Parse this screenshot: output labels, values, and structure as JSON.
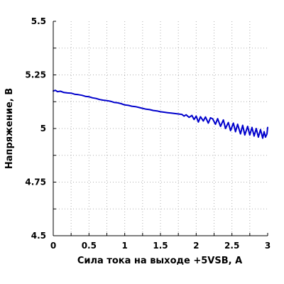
{
  "chart_data": {
    "type": "line",
    "title": "",
    "xlabel": "Сила тока на выходе +5VSB, А",
    "ylabel": "Напряжение, В",
    "xlim": [
      0,
      3
    ],
    "ylim": [
      4.5,
      5.5
    ],
    "x_ticks": [
      0,
      0.5,
      1,
      1.5,
      2,
      2.5,
      3
    ],
    "x_tick_labels": [
      "0",
      "0.5",
      "1",
      "1.5",
      "2",
      "2.5",
      "3"
    ],
    "y_ticks": [
      4.5,
      4.75,
      5,
      5.25,
      5.5
    ],
    "y_tick_labels": [
      "4.5",
      "4.75",
      "5",
      "5.25",
      "5.5"
    ],
    "grid": true,
    "legend": "none",
    "series": [
      {
        "color": "#0000cc",
        "x": [
          0,
          0.03,
          0.06,
          0.1,
          0.15,
          0.2,
          0.25,
          0.3,
          0.35,
          0.4,
          0.45,
          0.5,
          0.55,
          0.6,
          0.65,
          0.7,
          0.75,
          0.8,
          0.85,
          0.9,
          0.95,
          1.0,
          1.05,
          1.1,
          1.15,
          1.2,
          1.25,
          1.3,
          1.35,
          1.4,
          1.45,
          1.5,
          1.55,
          1.6,
          1.65,
          1.7,
          1.75,
          1.8,
          1.83,
          1.86,
          1.9,
          1.94,
          1.97,
          2.0,
          2.03,
          2.06,
          2.1,
          2.13,
          2.17,
          2.2,
          2.23,
          2.27,
          2.3,
          2.34,
          2.38,
          2.41,
          2.45,
          2.48,
          2.52,
          2.55,
          2.58,
          2.62,
          2.65,
          2.68,
          2.72,
          2.75,
          2.78,
          2.81,
          2.84,
          2.87,
          2.9,
          2.93,
          2.95,
          2.97,
          2.99,
          3.0
        ],
        "y": [
          5.175,
          5.178,
          5.172,
          5.174,
          5.168,
          5.166,
          5.165,
          5.16,
          5.158,
          5.155,
          5.15,
          5.148,
          5.143,
          5.14,
          5.135,
          5.132,
          5.13,
          5.127,
          5.122,
          5.12,
          5.116,
          5.11,
          5.108,
          5.104,
          5.102,
          5.098,
          5.094,
          5.09,
          5.088,
          5.084,
          5.082,
          5.078,
          5.076,
          5.074,
          5.072,
          5.07,
          5.068,
          5.066,
          5.058,
          5.064,
          5.052,
          5.061,
          5.042,
          5.058,
          5.03,
          5.055,
          5.035,
          5.054,
          5.025,
          5.05,
          5.045,
          5.02,
          5.046,
          5.01,
          5.04,
          5.0,
          5.028,
          4.99,
          5.025,
          4.985,
          5.02,
          4.975,
          5.015,
          4.97,
          5.01,
          4.97,
          5.005,
          4.965,
          5.0,
          4.96,
          4.995,
          4.955,
          4.985,
          4.96,
          4.975,
          5.005
        ]
      }
    ]
  }
}
